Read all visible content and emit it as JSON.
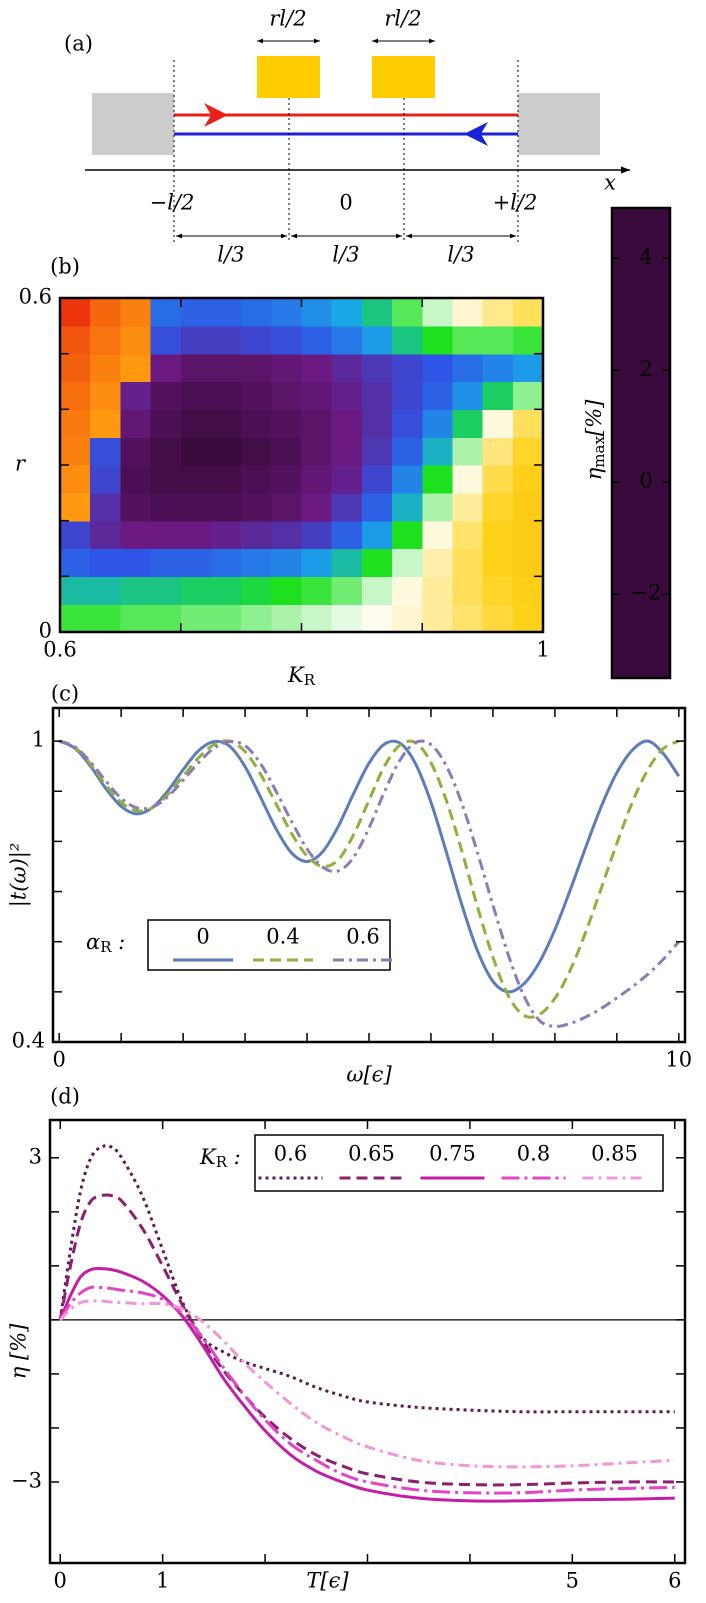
{
  "diagram": {
    "label": "(a)",
    "gate_width_labels": [
      "rl/2",
      "rl/2"
    ],
    "axis_label": "x",
    "positions": [
      "−l/2",
      "0",
      "+l/2"
    ],
    "segments": [
      "l/3",
      "l/3",
      "l/3"
    ]
  },
  "chart_data": [
    {
      "type": "heatmap",
      "label": "(b)",
      "xlabel": [
        "K",
        "R"
      ],
      "ylabel": "r",
      "x": [
        0.6125,
        0.6375,
        0.6625,
        0.6875,
        0.7125,
        0.7375,
        0.7625,
        0.7875,
        0.8125,
        0.8375,
        0.8625,
        0.8875,
        0.9125,
        0.9375,
        0.9625,
        0.9875
      ],
      "y": [
        0.025,
        0.075,
        0.125,
        0.175,
        0.225,
        0.275,
        0.325,
        0.375,
        0.425,
        0.475,
        0.525,
        0.575
      ],
      "z": [
        [
          -0.7,
          -0.7,
          -0.6,
          -0.6,
          -0.5,
          -0.5,
          -0.4,
          -0.3,
          -0.2,
          -0.1,
          0.1,
          0.3,
          0.6,
          0.9,
          1.2,
          1.4
        ],
        [
          -1.2,
          -1.2,
          -1.1,
          -1.1,
          -1.0,
          -1.0,
          -0.9,
          -0.8,
          -0.7,
          -0.5,
          -0.2,
          0.2,
          0.6,
          1.0,
          1.3,
          1.5
        ],
        [
          -2.0,
          -2.1,
          -2.1,
          -2.0,
          -2.0,
          -1.9,
          -1.8,
          -1.7,
          -1.5,
          -1.2,
          -0.8,
          -0.2,
          0.5,
          1.0,
          1.4,
          1.6
        ],
        [
          -2.3,
          -2.7,
          -2.9,
          -2.9,
          -2.9,
          -2.8,
          -2.7,
          -2.6,
          -2.4,
          -2.0,
          -1.5,
          -0.8,
          0.2,
          0.9,
          1.4,
          1.6
        ],
        [
          3.0,
          -2.6,
          -3.2,
          -3.3,
          -3.3,
          -3.3,
          -3.2,
          -3.1,
          -2.9,
          -2.5,
          -2.0,
          -1.3,
          -0.3,
          0.6,
          1.3,
          1.6
        ],
        [
          3.2,
          -2.3,
          -3.3,
          -3.4,
          -3.4,
          -3.4,
          -3.3,
          -3.2,
          -3.0,
          -2.8,
          -2.3,
          -1.7,
          -0.8,
          0.2,
          1.1,
          1.5
        ],
        [
          3.4,
          -2.2,
          -3.2,
          -3.4,
          -3.5,
          -3.5,
          -3.4,
          -3.3,
          -3.1,
          -2.9,
          -2.5,
          -2.0,
          -1.3,
          -0.3,
          0.8,
          1.3
        ],
        [
          3.5,
          3.0,
          -3.0,
          -3.3,
          -3.4,
          -3.4,
          -3.3,
          -3.2,
          -3.1,
          -2.9,
          -2.6,
          -2.2,
          -1.7,
          -1.0,
          0.2,
          1.0
        ],
        [
          3.7,
          3.2,
          -2.8,
          -3.2,
          -3.3,
          -3.3,
          -3.2,
          -3.1,
          -3.0,
          -2.8,
          -2.6,
          -2.3,
          -2.0,
          -1.6,
          -1.0,
          -0.4
        ],
        [
          3.9,
          3.4,
          3.0,
          -2.9,
          -3.1,
          -3.1,
          -3.1,
          -3.0,
          -2.9,
          -2.7,
          -2.5,
          -2.3,
          -2.1,
          -1.9,
          -1.7,
          -1.5
        ],
        [
          4.1,
          3.6,
          3.2,
          -2.2,
          -2.4,
          -2.4,
          -2.3,
          -2.2,
          -2.0,
          -1.8,
          -1.5,
          -1.1,
          -0.8,
          -0.6,
          -0.6,
          -0.7
        ],
        [
          4.6,
          3.8,
          3.4,
          -1.9,
          -2.0,
          -2.0,
          -1.9,
          -1.8,
          -1.6,
          -1.4,
          -1.1,
          -0.6,
          -0.2,
          0.3,
          0.7,
          1.0
        ]
      ],
      "xlim": [
        0.6,
        1
      ],
      "ylim": [
        0,
        0.6
      ],
      "xticks": [
        0.6,
        1
      ],
      "xticks_minor": [
        0.7,
        0.8,
        0.9
      ],
      "yticks": [
        0,
        0.6
      ],
      "yticks_minor": [
        0.1,
        0.2,
        0.3,
        0.4,
        0.5
      ],
      "colorbar_label": [
        "η",
        "max",
        "[%]"
      ],
      "zlim": [
        -3.5,
        4.9
      ],
      "zticks": [
        {
          "value": -2,
          "label": "−2"
        },
        0,
        2,
        4
      ],
      "colorscale": [
        [
          -3.5,
          "#3b0a3c"
        ],
        [
          -2.9,
          "#6a1a80"
        ],
        [
          -2.1,
          "#2f55e6"
        ],
        [
          -1.4,
          "#19a8e6"
        ],
        [
          -0.8,
          "#1ee01e"
        ],
        [
          0,
          "#ffffff"
        ],
        [
          1.4,
          "#ffd21a"
        ],
        [
          3.0,
          "#ff9a10"
        ],
        [
          4.9,
          "#e8220c"
        ]
      ]
    },
    {
      "type": "line",
      "label": "(c)",
      "xlabel": "ω[ϵ]",
      "ylabel": "|t(ω)|²",
      "x": [
        0,
        0.25,
        0.5,
        0.75,
        1,
        1.25,
        1.5,
        1.75,
        2,
        2.25,
        2.5,
        2.75,
        3,
        3.25,
        3.5,
        3.75,
        4,
        4.25,
        4.5,
        4.75,
        5,
        5.25,
        5.5,
        5.75,
        6,
        6.25,
        6.5,
        6.75,
        7,
        7.25,
        7.5,
        7.75,
        8,
        8.25,
        8.5,
        8.75,
        9,
        9.25,
        9.5,
        9.75,
        10
      ],
      "legend_title": [
        "α",
        "R",
        " :"
      ],
      "series": [
        {
          "name": "0",
          "color": "#5b7db8",
          "style": "solid",
          "values": [
            1,
            0.986,
            0.951,
            0.906,
            0.87,
            0.855,
            0.867,
            0.9,
            0.943,
            0.981,
            0.999,
            0.99,
            0.949,
            0.888,
            0.825,
            0.777,
            0.76,
            0.779,
            0.829,
            0.895,
            0.956,
            0.994,
            0.996,
            0.955,
            0.878,
            0.778,
            0.673,
            0.582,
            0.521,
            0.5,
            0.516,
            0.559,
            0.624,
            0.704,
            0.789,
            0.87,
            0.937,
            0.982,
            1,
            0.975,
            0.93
          ]
        },
        {
          "name": "0.4",
          "color": "#8fb03c",
          "style": "dashed",
          "values": [
            1,
            0.988,
            0.955,
            0.913,
            0.878,
            0.861,
            0.867,
            0.893,
            0.93,
            0.967,
            0.993,
            1.0,
            0.979,
            0.934,
            0.875,
            0.816,
            0.771,
            0.75,
            0.763,
            0.813,
            0.882,
            0.95,
            0.992,
            0.997,
            0.957,
            0.881,
            0.78,
            0.67,
            0.569,
            0.492,
            0.453,
            0.455,
            0.487,
            0.544,
            0.62,
            0.707,
            0.796,
            0.878,
            0.943,
            0.985,
            1
          ]
        },
        {
          "name": "0.6",
          "color": "#8c7bb5",
          "style": "dashdot",
          "values": [
            1,
            0.989,
            0.959,
            0.921,
            0.886,
            0.867,
            0.868,
            0.889,
            0.922,
            0.957,
            0.986,
            0.999,
            0.991,
            0.955,
            0.9,
            0.84,
            0.785,
            0.749,
            0.741,
            0.768,
            0.827,
            0.899,
            0.962,
            0.997,
            0.993,
            0.95,
            0.875,
            0.778,
            0.673,
            0.573,
            0.492,
            0.443,
            0.431,
            0.437,
            0.45,
            0.467,
            0.488,
            0.51,
            0.535,
            0.565,
            0.6
          ]
        }
      ],
      "xlim": [
        -0.1,
        10.1
      ],
      "ylim": [
        0.4,
        1.066
      ],
      "xticks": [
        0,
        10
      ],
      "xticks_minor": [
        1,
        2,
        3,
        4,
        5,
        6,
        7,
        8,
        9
      ],
      "yticks": [
        0.4,
        1
      ],
      "yticks_minor": [
        0.5,
        0.6,
        0.7,
        0.8,
        0.9
      ]
    },
    {
      "type": "line",
      "label": "(d)",
      "xlabel": "T[ϵ]",
      "ylabel": "η [%]",
      "x": [
        0,
        0.1,
        0.2,
        0.3,
        0.4,
        0.5,
        0.6,
        0.8,
        1,
        1.2,
        1.4,
        1.6,
        1.8,
        2,
        2.25,
        2.5,
        2.75,
        3,
        3.5,
        4,
        4.5,
        5,
        5.5,
        6
      ],
      "legend_title": [
        "K",
        "R",
        " :"
      ],
      "series": [
        {
          "name": "0.6",
          "color": "#5c1a4e",
          "style": "dotted",
          "values": [
            0,
            1.3,
            2.4,
            3.0,
            3.2,
            3.2,
            3.0,
            2.3,
            1.3,
            0.3,
            -0.35,
            -0.6,
            -0.78,
            -0.9,
            -1.05,
            -1.25,
            -1.4,
            -1.52,
            -1.62,
            -1.67,
            -1.7,
            -1.7,
            -1.7,
            -1.7
          ]
        },
        {
          "name": "0.65",
          "color": "#8c1f72",
          "style": "dashed",
          "values": [
            0,
            1.0,
            1.8,
            2.2,
            2.3,
            2.3,
            2.2,
            1.7,
            1.0,
            0.25,
            -0.4,
            -0.95,
            -1.4,
            -1.8,
            -2.2,
            -2.5,
            -2.7,
            -2.85,
            -3.0,
            -3.05,
            -3.05,
            -3.02,
            -3.0,
            -3.0
          ]
        },
        {
          "name": "0.75",
          "color": "#c41ea6",
          "style": "solid",
          "values": [
            0,
            0.45,
            0.8,
            0.93,
            0.95,
            0.93,
            0.88,
            0.72,
            0.45,
            0.05,
            -0.5,
            -1.1,
            -1.6,
            -2.05,
            -2.5,
            -2.8,
            -3.0,
            -3.15,
            -3.3,
            -3.35,
            -3.35,
            -3.33,
            -3.32,
            -3.3
          ]
        },
        {
          "name": "0.8",
          "color": "#e444c6",
          "style": "longdashdot",
          "values": [
            0,
            0.3,
            0.5,
            0.6,
            0.6,
            0.58,
            0.55,
            0.5,
            0.38,
            0.1,
            -0.35,
            -0.9,
            -1.4,
            -1.85,
            -2.3,
            -2.6,
            -2.85,
            -3.0,
            -3.15,
            -3.2,
            -3.2,
            -3.15,
            -3.12,
            -3.1
          ]
        },
        {
          "name": "0.85",
          "color": "#f296dc",
          "style": "dashdot",
          "values": [
            0,
            0.2,
            0.32,
            0.35,
            0.35,
            0.33,
            0.32,
            0.3,
            0.3,
            0.2,
            -0.05,
            -0.4,
            -0.8,
            -1.15,
            -1.55,
            -1.9,
            -2.15,
            -2.35,
            -2.6,
            -2.7,
            -2.72,
            -2.7,
            -2.65,
            -2.6
          ]
        }
      ],
      "hline": 0,
      "xlim": [
        -0.1,
        6.1
      ],
      "ylim": [
        -4.5,
        3.7
      ],
      "xticks": [
        0,
        1,
        5,
        6
      ],
      "xticks_minor": [
        2,
        3,
        4
      ],
      "yticks": [
        {
          "value": -3,
          "label": "−3"
        },
        3
      ],
      "yticks_minor": [
        -2,
        -1,
        0,
        1,
        2
      ]
    }
  ]
}
